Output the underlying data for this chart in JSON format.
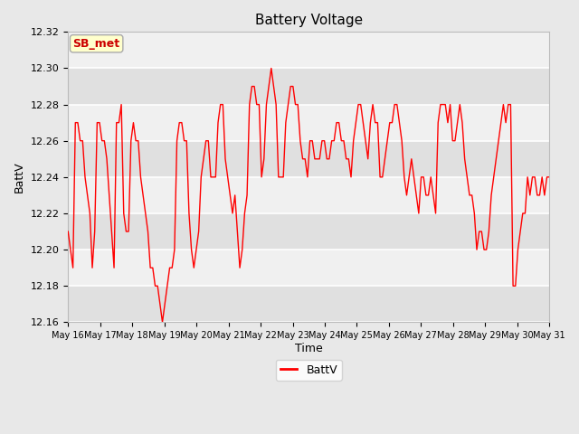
{
  "title": "Battery Voltage",
  "xlabel": "Time",
  "ylabel": "BattV",
  "ylim": [
    12.16,
    12.32
  ],
  "yticks": [
    12.16,
    12.18,
    12.2,
    12.22,
    12.24,
    12.26,
    12.28,
    12.3,
    12.32
  ],
  "line_color": "red",
  "line_width": 1.0,
  "bg_color": "#e8e8e8",
  "plot_bg_color": "#f0f0f0",
  "legend_label": "BattV",
  "annotation_text": "SB_met",
  "annotation_bg": "#ffffcc",
  "annotation_border": "#aaaaaa",
  "annotation_text_color": "#cc0000",
  "x_labels": [
    "May 16",
    "May 17",
    "May 18",
    "May 19",
    "May 20",
    "May 21",
    "May 22",
    "May 23",
    "May 24",
    "May 25",
    "May 26",
    "May 27",
    "May 28",
    "May 29",
    "May 30",
    "May 31"
  ],
  "n_days": 15,
  "data_points": [
    12.21,
    12.2,
    12.19,
    12.27,
    12.27,
    12.26,
    12.26,
    12.24,
    12.23,
    12.22,
    12.19,
    12.21,
    12.27,
    12.27,
    12.26,
    12.26,
    12.25,
    12.23,
    12.21,
    12.19,
    12.27,
    12.27,
    12.28,
    12.22,
    12.21,
    12.21,
    12.26,
    12.27,
    12.26,
    12.26,
    12.24,
    12.23,
    12.22,
    12.21,
    12.19,
    12.19,
    12.18,
    12.18,
    12.17,
    12.16,
    12.17,
    12.18,
    12.19,
    12.19,
    12.2,
    12.26,
    12.27,
    12.27,
    12.26,
    12.26,
    12.22,
    12.2,
    12.19,
    12.2,
    12.21,
    12.24,
    12.25,
    12.26,
    12.26,
    12.24,
    12.24,
    12.24,
    12.27,
    12.28,
    12.28,
    12.25,
    12.24,
    12.23,
    12.22,
    12.23,
    12.21,
    12.19,
    12.2,
    12.22,
    12.23,
    12.28,
    12.29,
    12.29,
    12.28,
    12.28,
    12.24,
    12.25,
    12.28,
    12.29,
    12.3,
    12.29,
    12.28,
    12.24,
    12.24,
    12.24,
    12.27,
    12.28,
    12.29,
    12.29,
    12.28,
    12.28,
    12.26,
    12.25,
    12.25,
    12.24,
    12.26,
    12.26,
    12.25,
    12.25,
    12.25,
    12.26,
    12.26,
    12.25,
    12.25,
    12.26,
    12.26,
    12.27,
    12.27,
    12.26,
    12.26,
    12.25,
    12.25,
    12.24,
    12.26,
    12.27,
    12.28,
    12.28,
    12.27,
    12.26,
    12.25,
    12.27,
    12.28,
    12.27,
    12.27,
    12.24,
    12.24,
    12.25,
    12.26,
    12.27,
    12.27,
    12.28,
    12.28,
    12.27,
    12.26,
    12.24,
    12.23,
    12.24,
    12.25,
    12.24,
    12.23,
    12.22,
    12.24,
    12.24,
    12.23,
    12.23,
    12.24,
    12.23,
    12.22,
    12.27,
    12.28,
    12.28,
    12.28,
    12.27,
    12.28,
    12.26,
    12.26,
    12.27,
    12.28,
    12.27,
    12.25,
    12.24,
    12.23,
    12.23,
    12.22,
    12.2,
    12.21,
    12.21,
    12.2,
    12.2,
    12.21,
    12.23,
    12.24,
    12.25,
    12.26,
    12.27,
    12.28,
    12.27,
    12.28,
    12.28,
    12.18,
    12.18,
    12.2,
    12.21,
    12.22,
    12.22,
    12.24,
    12.23,
    12.24,
    12.24,
    12.23,
    12.23,
    12.24,
    12.23,
    12.24,
    12.24
  ]
}
